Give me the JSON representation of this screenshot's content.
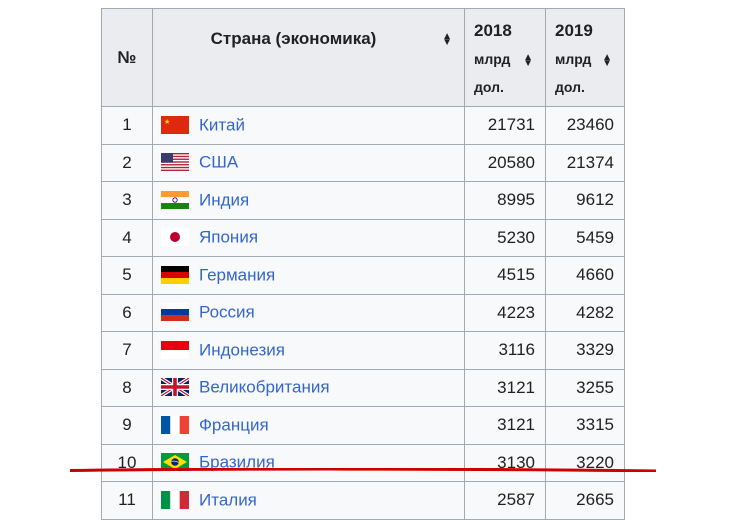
{
  "table": {
    "headers": {
      "num": "№",
      "country": "Страна (экономика)",
      "years": [
        {
          "year": "2018",
          "unit_line1": "млрд",
          "unit_line2": "дол."
        },
        {
          "year": "2019",
          "unit_line1": "млрд",
          "unit_line2": "дол."
        }
      ]
    },
    "rows": [
      {
        "num": "1",
        "country": "Китай",
        "flag": "china-flag-icon",
        "v2018": "21731",
        "v2019": "23460"
      },
      {
        "num": "2",
        "country": "США",
        "flag": "usa-flag-icon",
        "v2018": "20580",
        "v2019": "21374"
      },
      {
        "num": "3",
        "country": "Индия",
        "flag": "india-flag-icon",
        "v2018": "8995",
        "v2019": "9612"
      },
      {
        "num": "4",
        "country": "Япония",
        "flag": "japan-flag-icon",
        "v2018": "5230",
        "v2019": "5459"
      },
      {
        "num": "5",
        "country": "Германия",
        "flag": "germany-flag-icon",
        "v2018": "4515",
        "v2019": "4660"
      },
      {
        "num": "6",
        "country": "Россия",
        "flag": "russia-flag-icon",
        "v2018": "4223",
        "v2019": "4282"
      },
      {
        "num": "7",
        "country": "Индонезия",
        "flag": "indonesia-flag-icon",
        "v2018": "3116",
        "v2019": "3329"
      },
      {
        "num": "8",
        "country": "Великобритания",
        "flag": "uk-flag-icon",
        "v2018": "3121",
        "v2019": "3255"
      },
      {
        "num": "9",
        "country": "Франция",
        "flag": "france-flag-icon",
        "v2018": "3121",
        "v2019": "3315"
      },
      {
        "num": "10",
        "country": "Бразилия",
        "flag": "brazil-flag-icon",
        "v2018": "3130",
        "v2019": "3220"
      },
      {
        "num": "11",
        "country": "Италия",
        "flag": "italy-flag-icon",
        "v2018": "2587",
        "v2019": "2665"
      }
    ]
  },
  "colors": {
    "link": "#3366cc",
    "header_bg": "#eaecf0",
    "border": "#a2a9b1",
    "annotation_line": "#cc0000"
  },
  "sort_icon": "sort-arrows-icon"
}
